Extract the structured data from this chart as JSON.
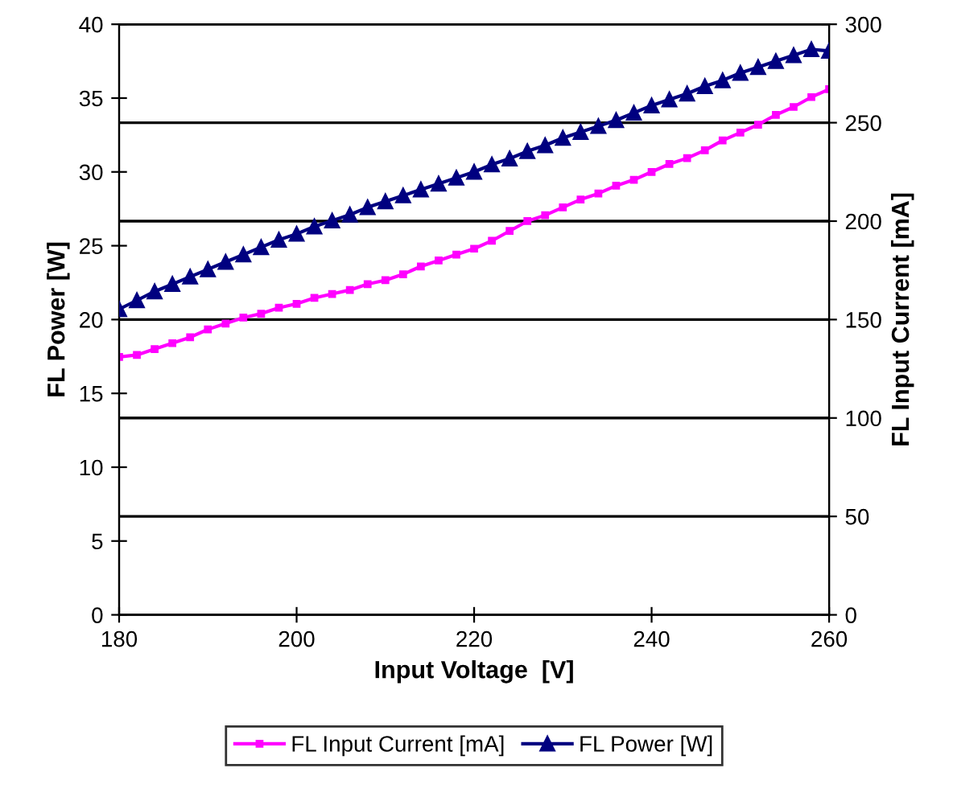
{
  "chart_data": {
    "type": "line",
    "xlabel": "Input Voltage  [V]",
    "ylabel": "FL Power [W]",
    "y2label": "FL Input Current [mA]",
    "x": [
      180,
      182,
      184,
      186,
      188,
      190,
      192,
      194,
      196,
      198,
      200,
      202,
      204,
      206,
      208,
      210,
      212,
      214,
      216,
      218,
      220,
      222,
      224,
      226,
      228,
      230,
      232,
      234,
      236,
      238,
      240,
      242,
      244,
      246,
      248,
      250,
      252,
      254,
      256,
      258,
      260
    ],
    "series": [
      {
        "name": "FL Input Current [mA]",
        "color": "#ff00ff",
        "axis": "y2",
        "marker": "square",
        "values": [
          131,
          132,
          135,
          138,
          141,
          145,
          148,
          151,
          153,
          156,
          158,
          161,
          163,
          165,
          168,
          170,
          173,
          177,
          180,
          183,
          186,
          190,
          195,
          200,
          203,
          207,
          211,
          214,
          218,
          221,
          225,
          229,
          232,
          236,
          241,
          245,
          249,
          254,
          258,
          263,
          267
        ]
      },
      {
        "name": "FL Power [W]",
        "color": "#000080",
        "marker": "triangle",
        "values": [
          20.7,
          21.3,
          21.9,
          22.4,
          22.9,
          23.4,
          23.9,
          24.4,
          24.9,
          25.4,
          25.8,
          26.3,
          26.7,
          27.1,
          27.6,
          28.0,
          28.4,
          28.8,
          29.2,
          29.6,
          30.0,
          30.5,
          30.9,
          31.4,
          31.8,
          32.3,
          32.7,
          33.1,
          33.5,
          34.0,
          34.5,
          34.9,
          35.3,
          35.8,
          36.2,
          36.7,
          37.1,
          37.5,
          37.9,
          38.3,
          38.2
        ]
      }
    ],
    "xlim": [
      180,
      260
    ],
    "xticks": [
      180,
      200,
      220,
      240,
      260
    ],
    "ylim": [
      0,
      40
    ],
    "yticks": [
      0,
      5,
      10,
      15,
      20,
      25,
      30,
      35,
      40
    ],
    "y2lim": [
      0,
      300
    ],
    "y2ticks": [
      0,
      50,
      100,
      150,
      200,
      250,
      300
    ],
    "grid": "y2",
    "legend": "bottom",
    "line_style": "solid"
  }
}
